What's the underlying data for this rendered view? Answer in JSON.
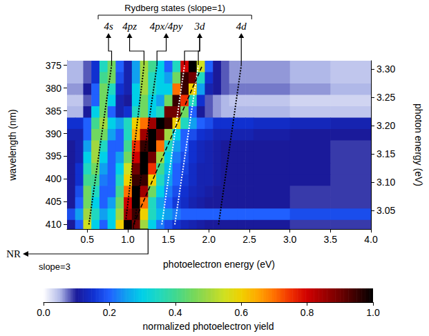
{
  "chart_data": {
    "type": "heatmap",
    "xlabel": "photoelectron energy (eV)",
    "ylabel": "wavelength (nm)",
    "y2label": "photon energy (eV)",
    "xlim": [
      0.25,
      4.0
    ],
    "xticks": [
      0.5,
      {
        "value": 1,
        "label": "1.0"
      },
      1.5,
      {
        "value": 2,
        "label": "2.0"
      },
      2.5,
      {
        "value": 3,
        "label": "3.0"
      },
      3.5,
      {
        "value": 4,
        "label": "4.0"
      }
    ],
    "ylim": [
      411,
      374
    ],
    "yticks": [
      375,
      380,
      385,
      390,
      395,
      400,
      405,
      410
    ],
    "y2lim": [
      3.017,
      3.315
    ],
    "y2ticks": [
      3.05,
      {
        "value": 3.1,
        "label": "3.10"
      },
      3.15,
      {
        "value": 3.2,
        "label": "3.20"
      },
      3.25,
      {
        "value": 3.3,
        "label": "3.30"
      }
    ],
    "x_edges": [
      0.25,
      0.35,
      0.45,
      0.55,
      0.65,
      0.75,
      0.85,
      0.95,
      1.05,
      1.15,
      1.25,
      1.35,
      1.45,
      1.55,
      1.65,
      1.75,
      1.85,
      1.95,
      2.05,
      2.15,
      2.25,
      2.35,
      2.45,
      2.55,
      3.0,
      3.5,
      4.0
    ],
    "y_edges": [
      374,
      376.5,
      379,
      381.5,
      384,
      386.5,
      389,
      391.5,
      394,
      396.5,
      399,
      401.5,
      404,
      406.5,
      409,
      411
    ],
    "z": [
      [
        0.05,
        0.05,
        0.08,
        0.15,
        0.35,
        0.45,
        0.2,
        0.12,
        0.25,
        0.5,
        0.4,
        0.3,
        0.2,
        0.35,
        0.8,
        1.0,
        0.55,
        0.2,
        0.1,
        0.08,
        0.06,
        0.06,
        0.06,
        0.06,
        0.05,
        0.04
      ],
      [
        0.05,
        0.05,
        0.08,
        0.15,
        0.4,
        0.45,
        0.18,
        0.12,
        0.25,
        0.5,
        0.35,
        0.3,
        0.25,
        0.45,
        0.95,
        0.9,
        0.35,
        0.15,
        0.1,
        0.08,
        0.06,
        0.06,
        0.06,
        0.06,
        0.05,
        0.04
      ],
      [
        0.06,
        0.06,
        0.1,
        0.2,
        0.45,
        0.35,
        0.15,
        0.12,
        0.3,
        0.5,
        0.35,
        0.3,
        0.3,
        0.7,
        0.95,
        0.6,
        0.25,
        0.12,
        0.1,
        0.08,
        0.07,
        0.07,
        0.07,
        0.07,
        0.06,
        0.05
      ],
      [
        0.04,
        0.04,
        0.08,
        0.2,
        0.45,
        0.3,
        0.12,
        0.1,
        0.3,
        0.45,
        0.3,
        0.25,
        0.45,
        0.95,
        0.75,
        0.35,
        0.15,
        0.08,
        0.06,
        0.05,
        0.04,
        0.04,
        0.04,
        0.04,
        0.03,
        0.03
      ],
      [
        0.05,
        0.05,
        0.1,
        0.3,
        0.45,
        0.2,
        0.12,
        0.15,
        0.35,
        0.45,
        0.3,
        0.35,
        0.9,
        0.9,
        0.45,
        0.2,
        0.1,
        0.08,
        0.06,
        0.05,
        0.05,
        0.05,
        0.05,
        0.05,
        0.04,
        0.04
      ],
      [
        0.15,
        0.15,
        0.2,
        0.4,
        0.5,
        0.3,
        0.25,
        0.35,
        0.6,
        0.7,
        0.85,
        1.0,
        0.95,
        0.6,
        0.35,
        0.25,
        0.2,
        0.18,
        0.15,
        0.15,
        0.15,
        0.15,
        0.15,
        0.14,
        0.13,
        0.12
      ],
      [
        0.12,
        0.12,
        0.2,
        0.45,
        0.45,
        0.25,
        0.2,
        0.35,
        0.65,
        0.85,
        1.0,
        0.9,
        0.5,
        0.3,
        0.2,
        0.18,
        0.15,
        0.14,
        0.12,
        0.12,
        0.12,
        0.12,
        0.12,
        0.11,
        0.1,
        0.1
      ],
      [
        0.1,
        0.12,
        0.25,
        0.5,
        0.35,
        0.2,
        0.2,
        0.4,
        0.75,
        0.95,
        1.0,
        0.7,
        0.35,
        0.25,
        0.2,
        0.15,
        0.13,
        0.12,
        0.11,
        0.1,
        0.1,
        0.1,
        0.1,
        0.1,
        0.1,
        0.09
      ],
      [
        0.1,
        0.12,
        0.3,
        0.5,
        0.3,
        0.2,
        0.25,
        0.45,
        0.8,
        1.0,
        0.9,
        0.5,
        0.3,
        0.22,
        0.18,
        0.15,
        0.13,
        0.12,
        0.11,
        0.1,
        0.1,
        0.1,
        0.1,
        0.1,
        0.1,
        0.09
      ],
      [
        0.1,
        0.15,
        0.35,
        0.45,
        0.25,
        0.2,
        0.3,
        0.55,
        0.9,
        1.0,
        0.75,
        0.4,
        0.28,
        0.2,
        0.17,
        0.14,
        0.12,
        0.12,
        0.11,
        0.1,
        0.1,
        0.1,
        0.1,
        0.1,
        0.1,
        0.09
      ],
      [
        0.1,
        0.15,
        0.4,
        0.4,
        0.22,
        0.2,
        0.35,
        0.6,
        0.95,
        0.95,
        0.6,
        0.35,
        0.25,
        0.2,
        0.16,
        0.14,
        0.12,
        0.12,
        0.11,
        0.1,
        0.1,
        0.1,
        0.1,
        0.1,
        0.1,
        0.09
      ],
      [
        0.1,
        0.18,
        0.45,
        0.35,
        0.2,
        0.2,
        0.4,
        0.7,
        1.0,
        0.85,
        0.45,
        0.3,
        0.22,
        0.18,
        0.15,
        0.13,
        0.12,
        0.11,
        0.1,
        0.1,
        0.1,
        0.1,
        0.1,
        0.1,
        0.09,
        0.09
      ],
      [
        0.1,
        0.2,
        0.45,
        0.3,
        0.2,
        0.25,
        0.45,
        0.8,
        1.0,
        0.7,
        0.35,
        0.25,
        0.2,
        0.16,
        0.14,
        0.12,
        0.11,
        0.1,
        0.1,
        0.1,
        0.1,
        0.1,
        0.1,
        0.1,
        0.09,
        0.09
      ],
      [
        0.18,
        0.25,
        0.5,
        0.35,
        0.25,
        0.3,
        0.5,
        0.85,
        0.95,
        0.6,
        0.35,
        0.28,
        0.25,
        0.22,
        0.2,
        0.2,
        0.2,
        0.2,
        0.2,
        0.2,
        0.2,
        0.2,
        0.2,
        0.2,
        0.18,
        0.18
      ],
      [
        0.1,
        0.2,
        0.55,
        0.3,
        0.2,
        0.3,
        0.6,
        1.0,
        0.9,
        0.5,
        0.3,
        0.22,
        0.18,
        0.15,
        0.13,
        0.12,
        0.11,
        0.1,
        0.1,
        0.1,
        0.1,
        0.1,
        0.1,
        0.1,
        0.09,
        0.09
      ]
    ],
    "colorbar": {
      "label": "normalized photoelectron yield",
      "clim": [
        0,
        1
      ],
      "ticks": [
        {
          "value": 0,
          "label": "0.0"
        },
        0.2,
        0.4,
        0.6,
        0.8,
        {
          "value": 1,
          "label": "1.0"
        }
      ]
    },
    "rydberg_states": {
      "title": "Rydberg states (slope=1)",
      "states": [
        {
          "label": "4s",
          "color": "#000000",
          "line_style": "dotted",
          "lines": [
            {
              "x": [
                0.52,
                0.8
              ],
              "y": [
                410,
                375
              ]
            }
          ]
        },
        {
          "label": "4pz",
          "color": "#000000",
          "line_style": "dotted",
          "lines": [
            {
              "x": [
                0.97,
                1.2
              ],
              "y": [
                410,
                375
              ]
            }
          ]
        },
        {
          "label": "4px/4py",
          "color": "#000000",
          "line_style": "dotted",
          "lines": [
            {
              "x": [
                1.08,
                1.36
              ],
              "y": [
                410,
                375
              ]
            }
          ]
        },
        {
          "label": "3d",
          "color": "#ffffff",
          "line_style": "dotted",
          "lines": [
            {
              "x": [
                1.42,
                1.7
              ],
              "y": [
                410,
                375
              ]
            },
            {
              "x": [
                1.58,
                1.87
              ],
              "y": [
                410,
                375
              ]
            }
          ]
        },
        {
          "label": "4d",
          "color": "#000000",
          "line_style": "dotted",
          "lines": [
            {
              "x": [
                2.12,
                2.4
              ],
              "y": [
                410,
                375
              ]
            }
          ]
        }
      ]
    },
    "nonresonant": {
      "label": "NR",
      "slope_label": "slope=3",
      "color": "#000000",
      "line_style": "dashed",
      "x": [
        1.07,
        1.92
      ],
      "y": [
        410,
        375
      ]
    }
  }
}
